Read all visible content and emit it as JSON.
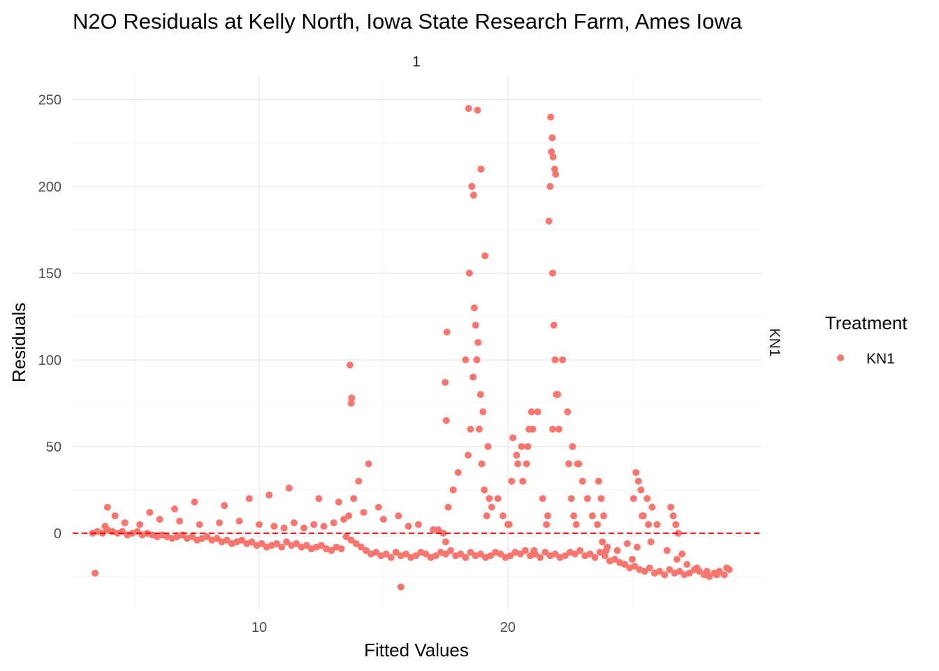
{
  "chart_data": {
    "type": "scatter",
    "title": "N2O Residuals at Kelly North, Iowa State Research Farm, Ames Iowa",
    "xlabel": "Fitted Values",
    "ylabel": "Residuals",
    "facet_top": "1",
    "facet_right": "KN1",
    "legend": {
      "title": "Treatment",
      "entries": [
        "KN1"
      ],
      "position": "right"
    },
    "point_color": "#F8766D",
    "reference_line": {
      "y": 0,
      "color": "#FF0000",
      "style": "dashed"
    },
    "xlim": [
      2.5,
      30.2
    ],
    "ylim": [
      -44,
      264
    ],
    "x_ticks": [
      10,
      20
    ],
    "x_tick_labels": [
      "10",
      "20"
    ],
    "y_ticks": [
      0,
      50,
      100,
      150,
      200,
      250
    ],
    "y_tick_labels": [
      "0",
      "50",
      "100",
      "150",
      "200",
      "250"
    ],
    "grid": true,
    "x": [
      3.3,
      3.5,
      3.7,
      3.9,
      4.1,
      4.3,
      4.5,
      4.7,
      4.9,
      5.1,
      5.3,
      5.5,
      5.7,
      5.9,
      6.1,
      6.3,
      6.5,
      6.7,
      6.9,
      7.1,
      7.3,
      7.5,
      7.7,
      7.9,
      8.1,
      8.3,
      8.5,
      8.7,
      8.9,
      9.1,
      9.3,
      9.5,
      9.7,
      9.9,
      10.1,
      10.3,
      10.5,
      10.7,
      10.9,
      11.1,
      11.3,
      11.5,
      11.7,
      11.9,
      12.1,
      12.3,
      12.5,
      12.7,
      12.9,
      13.1,
      13.3,
      13.5,
      13.7,
      13.9,
      14.1,
      14.3,
      14.5,
      14.7,
      14.9,
      15.1,
      15.3,
      15.5,
      15.7,
      15.9,
      16.1,
      16.3,
      16.5,
      16.7,
      16.9,
      17.1,
      17.3,
      17.5,
      17.7,
      17.9,
      18.1,
      18.3,
      18.5,
      18.7,
      18.9,
      19.1,
      19.3,
      19.5,
      19.7,
      19.9,
      20.1,
      20.3,
      20.5,
      20.7,
      20.9,
      21.1,
      21.3,
      21.5,
      21.7,
      21.9,
      22.1,
      22.3,
      22.5,
      22.7,
      22.9,
      23.1,
      23.3,
      23.5,
      23.7,
      23.9,
      24.1,
      24.3,
      24.5,
      24.7,
      24.9,
      25.1,
      25.3,
      25.5,
      25.7,
      25.9,
      26.1,
      26.3,
      26.5,
      26.7,
      26.9,
      27.1,
      27.3,
      27.5,
      27.7,
      27.9,
      28.1,
      28.3,
      28.5,
      28.7,
      28.9,
      3.4,
      3.8,
      4.6,
      5.2,
      6.0,
      6.8,
      7.6,
      8.4,
      9.2,
      10.0,
      10.6,
      11.0,
      11.4,
      11.8,
      12.2,
      12.6,
      13.0,
      13.4,
      13.6,
      13.8,
      14.0,
      14.4,
      14.8,
      15.6,
      16.4,
      17.2,
      17.4,
      17.6,
      17.8,
      18.0,
      18.4,
      18.5,
      18.6,
      18.7,
      18.8,
      18.9,
      19.0,
      19.2,
      19.6,
      19.8,
      20.0,
      20.2,
      20.4,
      20.6,
      20.8,
      21.0,
      21.2,
      21.4,
      21.6,
      21.8,
      22.0,
      22.2,
      22.4,
      22.6,
      22.8,
      23.0,
      23.2,
      23.4,
      23.6,
      23.8,
      24.0,
      24.4,
      24.8,
      25.0,
      25.2,
      25.4,
      25.6,
      25.8,
      26.0,
      26.4,
      26.8,
      27.0,
      27.2,
      27.6,
      28.0,
      28.4,
      28.8,
      3.9,
      4.2,
      5.6,
      6.6,
      7.4,
      8.6,
      9.6,
      10.4,
      11.2,
      12.4,
      13.2,
      13.7,
      14.2,
      15.0,
      16.0,
      17.0,
      17.5,
      18.3,
      18.45,
      18.55,
      18.65,
      18.75,
      18.85,
      18.95,
      19.05,
      19.15,
      19.25,
      19.35,
      20.05,
      20.15,
      20.35,
      20.55,
      20.75,
      20.85,
      20.95,
      21.05,
      21.55,
      21.65,
      21.7,
      21.75,
      21.8,
      21.85,
      21.9,
      21.95,
      22.05,
      22.45,
      22.55,
      22.65,
      22.75,
      22.85,
      23.65,
      23.75,
      23.85,
      23.95,
      25.05,
      25.15,
      25.25,
      25.35,
      25.45,
      25.65,
      25.75,
      26.55,
      26.65,
      26.75,
      26.85,
      15.7,
      17.55,
      18.42,
      18.62,
      18.78,
      18.92,
      19.08,
      21.72,
      21.78,
      21.82,
      21.88,
      21.92,
      13.65,
      13.72,
      17.48,
      17.52
    ],
    "y": [
      0,
      1,
      0,
      2,
      1,
      0,
      1,
      -1,
      0,
      1,
      -1,
      0,
      -1,
      -2,
      -1,
      -2,
      -3,
      -2,
      -1,
      -3,
      -2,
      -4,
      -3,
      -2,
      -4,
      -3,
      -5,
      -4,
      -6,
      -5,
      -4,
      -6,
      -5,
      -7,
      -6,
      -8,
      -7,
      -6,
      -8,
      -5,
      -7,
      -6,
      -8,
      -7,
      -9,
      -8,
      -7,
      -9,
      -10,
      -8,
      -9,
      -2,
      -4,
      -6,
      -8,
      -10,
      -12,
      -11,
      -13,
      -12,
      -14,
      -11,
      -13,
      -12,
      -14,
      -13,
      -11,
      -12,
      -14,
      -13,
      -11,
      -12,
      -10,
      -13,
      -12,
      -14,
      -11,
      -13,
      -12,
      -14,
      -13,
      -11,
      -12,
      -14,
      -13,
      -11,
      -12,
      -10,
      -13,
      -12,
      -14,
      -11,
      -13,
      -12,
      -14,
      -13,
      -11,
      -12,
      -10,
      -13,
      -12,
      -14,
      -11,
      -13,
      -16,
      -15,
      -17,
      -18,
      -20,
      -19,
      -21,
      -22,
      -20,
      -23,
      -22,
      -24,
      -21,
      -23,
      -22,
      -24,
      -23,
      -21,
      -22,
      -24,
      -25,
      -23,
      -22,
      -24,
      -21,
      -23,
      4,
      6,
      5,
      8,
      7,
      5,
      6,
      7,
      5,
      4,
      3,
      6,
      3,
      5,
      4,
      6,
      8,
      10,
      20,
      30,
      40,
      15,
      10,
      5,
      2,
      0,
      15,
      25,
      35,
      45,
      60,
      90,
      120,
      110,
      80,
      70,
      50,
      20,
      10,
      5,
      55,
      40,
      30,
      50,
      60,
      70,
      20,
      10,
      60,
      80,
      100,
      70,
      50,
      40,
      30,
      20,
      10,
      5,
      -5,
      -8,
      -10,
      -6,
      -15,
      -8,
      10,
      20,
      15,
      5,
      -10,
      -15,
      -12,
      -18,
      -20,
      -22,
      -24,
      -20,
      15,
      10,
      12,
      14,
      18,
      16,
      20,
      22,
      26,
      20,
      18,
      75,
      12,
      8,
      4,
      2,
      -5,
      100,
      150,
      200,
      130,
      100,
      60,
      40,
      25,
      10,
      20,
      15,
      5,
      30,
      45,
      50,
      40,
      60,
      70,
      -10,
      5,
      180,
      200,
      220,
      150,
      120,
      100,
      80,
      60,
      40,
      20,
      10,
      5,
      40,
      30,
      20,
      10,
      -10,
      20,
      35,
      30,
      25,
      10,
      5,
      -5,
      15,
      10,
      5,
      0,
      -31,
      116,
      245,
      195,
      244,
      210,
      160,
      240,
      228,
      217,
      210,
      207,
      97,
      78,
      87,
      65
    ]
  }
}
